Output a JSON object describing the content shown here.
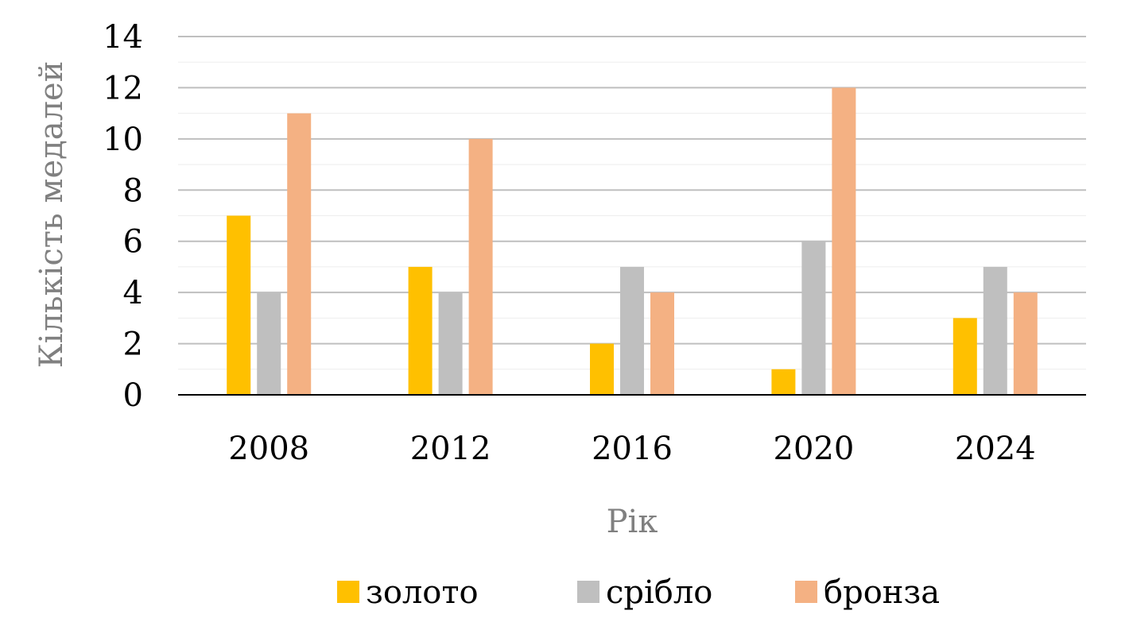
{
  "chart_data": {
    "type": "bar",
    "title": "",
    "xlabel": "Рік",
    "ylabel": "Кількість медалей",
    "categories": [
      "2008",
      "2012",
      "2016",
      "2020",
      "2024"
    ],
    "series": [
      {
        "name": "золото",
        "values": [
          7,
          5,
          2,
          1,
          3
        ],
        "color": "#FFC000"
      },
      {
        "name": "срібло",
        "values": [
          4,
          4,
          5,
          6,
          5
        ],
        "color": "#BFBFBF"
      },
      {
        "name": "бронза",
        "values": [
          11,
          10,
          4,
          12,
          4
        ],
        "color": "#F4B183"
      }
    ],
    "ylim": [
      0,
      14
    ],
    "yticks": [
      0,
      2,
      4,
      6,
      8,
      10,
      12,
      14
    ],
    "grid": true,
    "minor_grid": true,
    "legend_position": "bottom"
  }
}
